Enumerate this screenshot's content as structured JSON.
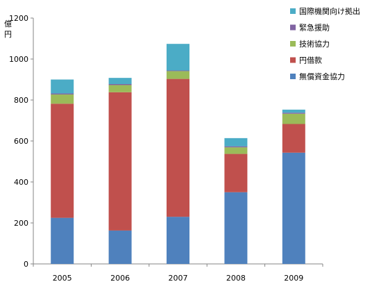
{
  "chart_data": {
    "type": "bar",
    "stacked": true,
    "categories": [
      "2005",
      "2006",
      "2007",
      "2008",
      "2009"
    ],
    "series": [
      {
        "name": "無償資金協力",
        "color": "#4f81bd",
        "values": [
          225,
          163,
          230,
          350,
          543
        ]
      },
      {
        "name": "円借款",
        "color": "#c0504d",
        "values": [
          557,
          675,
          673,
          187,
          140
        ]
      },
      {
        "name": "技術協力",
        "color": "#9bbb59",
        "values": [
          45,
          35,
          38,
          32,
          50
        ]
      },
      {
        "name": "緊急援助",
        "color": "#8064a2",
        "values": [
          5,
          5,
          3,
          5,
          5
        ]
      },
      {
        "name": "国際機関向け拠出",
        "color": "#4bacc6",
        "values": [
          68,
          30,
          130,
          40,
          15
        ]
      }
    ],
    "ylabel": "億円",
    "ylim": [
      0,
      1200
    ],
    "yticks": [
      0,
      200,
      400,
      600,
      800,
      1000,
      1200
    ],
    "grid": false,
    "legend_position": "top-right",
    "legend_order": [
      "国際機関向け拠出",
      "緊急援助",
      "技術協力",
      "円借款",
      "無償資金協力"
    ]
  }
}
